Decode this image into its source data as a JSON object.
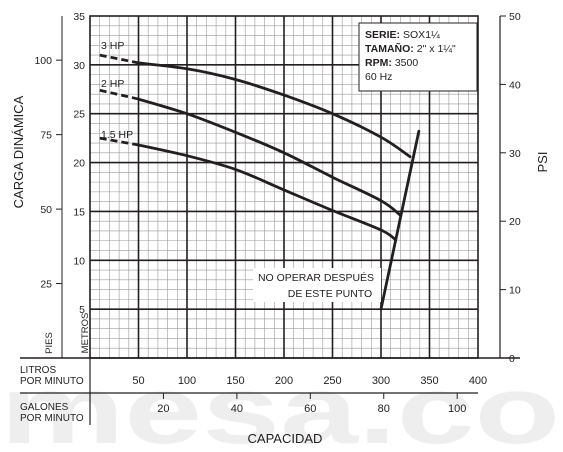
{
  "watermark": "mesa.co",
  "chart_data": {
    "type": "line",
    "title": "",
    "xlabel": "CAPACIDAD",
    "ylabel": "CARGA DINÁMICA",
    "y2label": "PSI",
    "info": {
      "serie_label": "SERIE:",
      "serie_value": "SOX1¼",
      "tamano_label": "TAMAÑO:",
      "tamano_value": "2\" x 1¼\"",
      "rpm_label": "RPM:",
      "rpm_value": "3500",
      "hz": "60 Hz"
    },
    "axes": {
      "metros": {
        "title": "METROS",
        "ticks": [
          5,
          10,
          15,
          20,
          25,
          30,
          35
        ],
        "range": [
          0,
          35
        ]
      },
      "pies": {
        "title": "PIES",
        "ticks": [
          25,
          50,
          75,
          100
        ]
      },
      "psi": {
        "title": "PSI",
        "ticks": [
          0,
          10,
          20,
          30,
          40,
          50
        ],
        "range": [
          0,
          50
        ]
      },
      "litros": {
        "title_line1": "LITROS",
        "title_line2": "POR MINUTO",
        "ticks": [
          50,
          100,
          150,
          200,
          250,
          300,
          350,
          400
        ],
        "range": [
          0,
          400
        ]
      },
      "galones": {
        "title_line1": "GALONES",
        "title_line2": "POR MINUTO",
        "ticks": [
          20,
          40,
          60,
          80,
          100
        ]
      }
    },
    "grid": true,
    "series": [
      {
        "name": "3 HP",
        "dashed": [
          [
            10,
            31
          ],
          [
            50,
            30.2
          ]
        ],
        "values": [
          [
            50,
            30.2
          ],
          [
            100,
            29.6
          ],
          [
            150,
            28.5
          ],
          [
            200,
            26.9
          ],
          [
            250,
            25
          ],
          [
            300,
            22.6
          ],
          [
            330,
            20.6
          ]
        ]
      },
      {
        "name": "2 HP",
        "dashed": [
          [
            10,
            27.4
          ],
          [
            50,
            26.5
          ]
        ],
        "values": [
          [
            50,
            26.5
          ],
          [
            100,
            25
          ],
          [
            150,
            23.1
          ],
          [
            200,
            21
          ],
          [
            250,
            18.5
          ],
          [
            300,
            16.1
          ],
          [
            320,
            14.6
          ]
        ]
      },
      {
        "name": "1.5 HP",
        "dashed": [
          [
            10,
            22.5
          ],
          [
            50,
            21.8
          ]
        ],
        "values": [
          [
            50,
            21.8
          ],
          [
            100,
            20.7
          ],
          [
            150,
            19.3
          ],
          [
            200,
            17.2
          ],
          [
            250,
            15.1
          ],
          [
            300,
            13.1
          ],
          [
            315,
            12.1
          ]
        ]
      }
    ],
    "limit_line": [
      [
        300,
        5
      ],
      [
        339,
        23.2
      ]
    ],
    "annotation": {
      "line1": "NO OPERAR DESPUÉS",
      "line2": "DE ESTE PUNTO"
    }
  }
}
